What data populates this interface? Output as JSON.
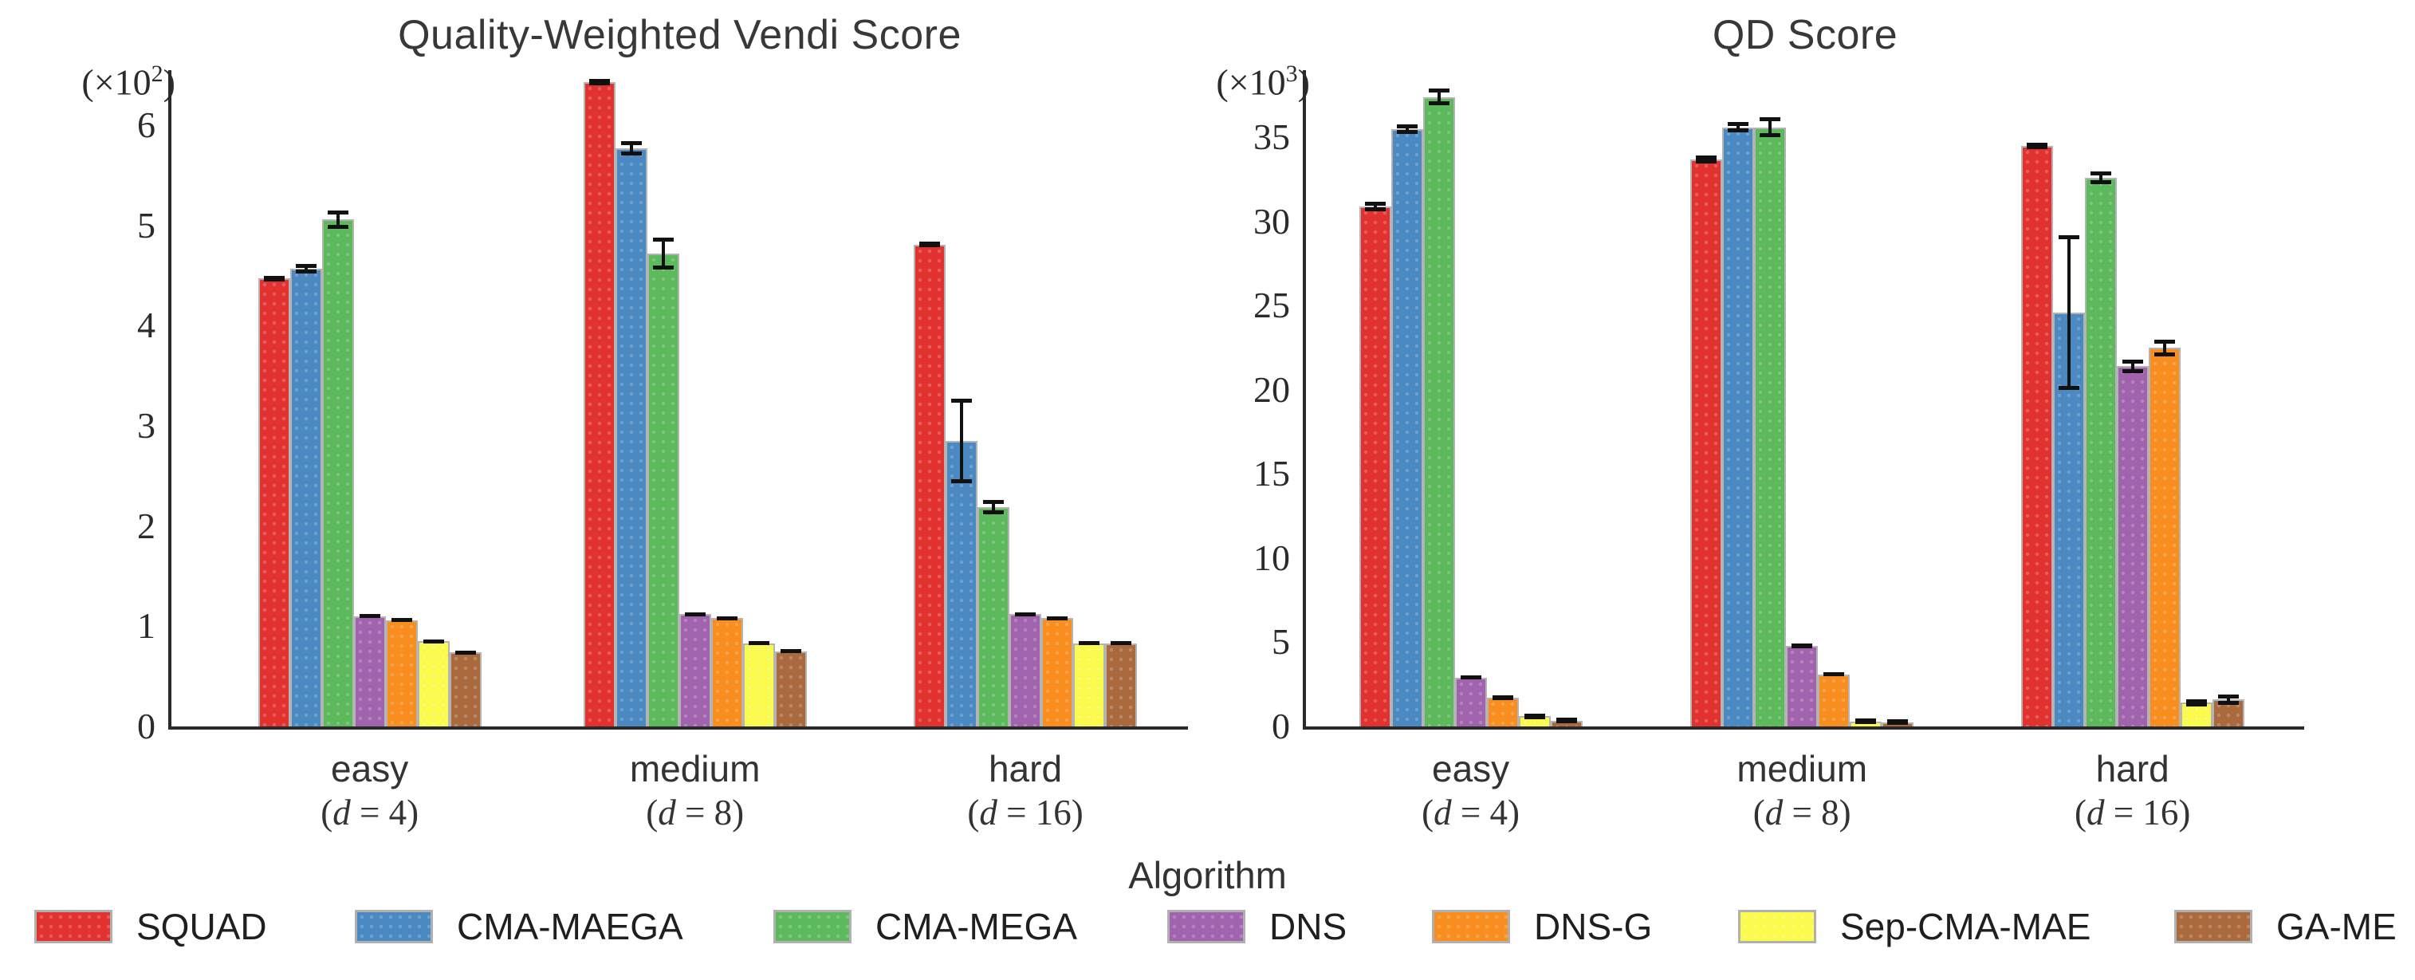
{
  "figure": {
    "background": "#ffffff",
    "axis_color": "#2a2a2a",
    "bar_edge_color": "#b4b4b4",
    "error_bar_color": "#111111",
    "xaxis_title": "Algorithm"
  },
  "legend": {
    "items": [
      {
        "label": "SQUAD",
        "color": "#e23230"
      },
      {
        "label": "CMA-MAEGA",
        "color": "#4a89c2"
      },
      {
        "label": "CMA-MEGA",
        "color": "#5cb95c"
      },
      {
        "label": "DNS",
        "color": "#a263ae"
      },
      {
        "label": "DNS-G",
        "color": "#f98e1e"
      },
      {
        "label": "Sep-CMA-MAE",
        "color": "#fbfb4d"
      },
      {
        "label": "GA-ME",
        "color": "#aa6a3e"
      }
    ]
  },
  "chart_data": [
    {
      "type": "bar",
      "title": "Quality-Weighted Vendi Score",
      "unit": {
        "prefix": "(×10",
        "exp": "2",
        "suffix": ")"
      },
      "categories": [
        "easy",
        "medium",
        "hard"
      ],
      "category_sublabels": [
        "(d = 4)",
        "(d = 8)",
        "(d = 16)"
      ],
      "yticks": [
        0,
        1,
        2,
        3,
        4,
        5,
        6
      ],
      "ylim": [
        0,
        6.55
      ],
      "grid": false,
      "series": [
        {
          "name": "SQUAD",
          "color": "#e23230",
          "values": [
            4.47,
            6.43,
            4.81
          ],
          "errors": [
            0.03,
            0.03,
            0.03
          ]
        },
        {
          "name": "CMA-MAEGA",
          "color": "#4a89c2",
          "values": [
            4.57,
            5.77,
            2.85
          ],
          "errors": [
            0.05,
            0.07,
            0.42
          ]
        },
        {
          "name": "CMA-MEGA",
          "color": "#5cb95c",
          "values": [
            5.06,
            4.72,
            2.19
          ],
          "errors": [
            0.09,
            0.16,
            0.07
          ]
        },
        {
          "name": "DNS",
          "color": "#a263ae",
          "values": [
            1.1,
            1.12,
            1.12
          ],
          "errors": [
            0.02,
            0.02,
            0.02
          ]
        },
        {
          "name": "DNS-G",
          "color": "#f98e1e",
          "values": [
            1.06,
            1.08,
            1.08
          ],
          "errors": [
            0.02,
            0.02,
            0.02
          ]
        },
        {
          "name": "Sep-CMA-MAE",
          "color": "#fbfb4d",
          "values": [
            0.85,
            0.83,
            0.83
          ],
          "errors": [
            0.02,
            0.02,
            0.02
          ]
        },
        {
          "name": "GA-ME",
          "color": "#aa6a3e",
          "values": [
            0.74,
            0.75,
            0.83
          ],
          "errors": [
            0.02,
            0.02,
            0.02
          ]
        }
      ]
    },
    {
      "type": "bar",
      "title": "QD Score",
      "unit": {
        "prefix": "(×10",
        "exp": "3",
        "suffix": ")"
      },
      "categories": [
        "easy",
        "medium",
        "hard"
      ],
      "category_sublabels": [
        "(d = 4)",
        "(d = 8)",
        "(d = 16)"
      ],
      "yticks": [
        0,
        5,
        10,
        15,
        20,
        25,
        30,
        35
      ],
      "ylim": [
        0,
        39
      ],
      "grid": false,
      "series": [
        {
          "name": "SQUAD",
          "color": "#e23230",
          "values": [
            30.9,
            33.7,
            34.5
          ],
          "errors": [
            0.3,
            0.25,
            0.2
          ]
        },
        {
          "name": "CMA-MAEGA",
          "color": "#4a89c2",
          "values": [
            35.5,
            35.6,
            24.6
          ],
          "errors": [
            0.3,
            0.3,
            4.6
          ]
        },
        {
          "name": "CMA-MEGA",
          "color": "#5cb95c",
          "values": [
            37.4,
            35.6,
            32.6
          ],
          "errors": [
            0.5,
            0.6,
            0.4
          ]
        },
        {
          "name": "DNS",
          "color": "#a263ae",
          "values": [
            2.9,
            4.8,
            21.4
          ],
          "errors": [
            0.12,
            0.15,
            0.4
          ]
        },
        {
          "name": "DNS-G",
          "color": "#f98e1e",
          "values": [
            1.7,
            3.1,
            22.5
          ],
          "errors": [
            0.1,
            0.1,
            0.5
          ]
        },
        {
          "name": "Sep-CMA-MAE",
          "color": "#fbfb4d",
          "values": [
            0.6,
            0.3,
            1.4
          ],
          "errors": [
            0.08,
            0.06,
            0.2
          ]
        },
        {
          "name": "GA-ME",
          "color": "#aa6a3e",
          "values": [
            0.35,
            0.25,
            1.6
          ],
          "errors": [
            0.08,
            0.06,
            0.3
          ]
        }
      ]
    }
  ]
}
